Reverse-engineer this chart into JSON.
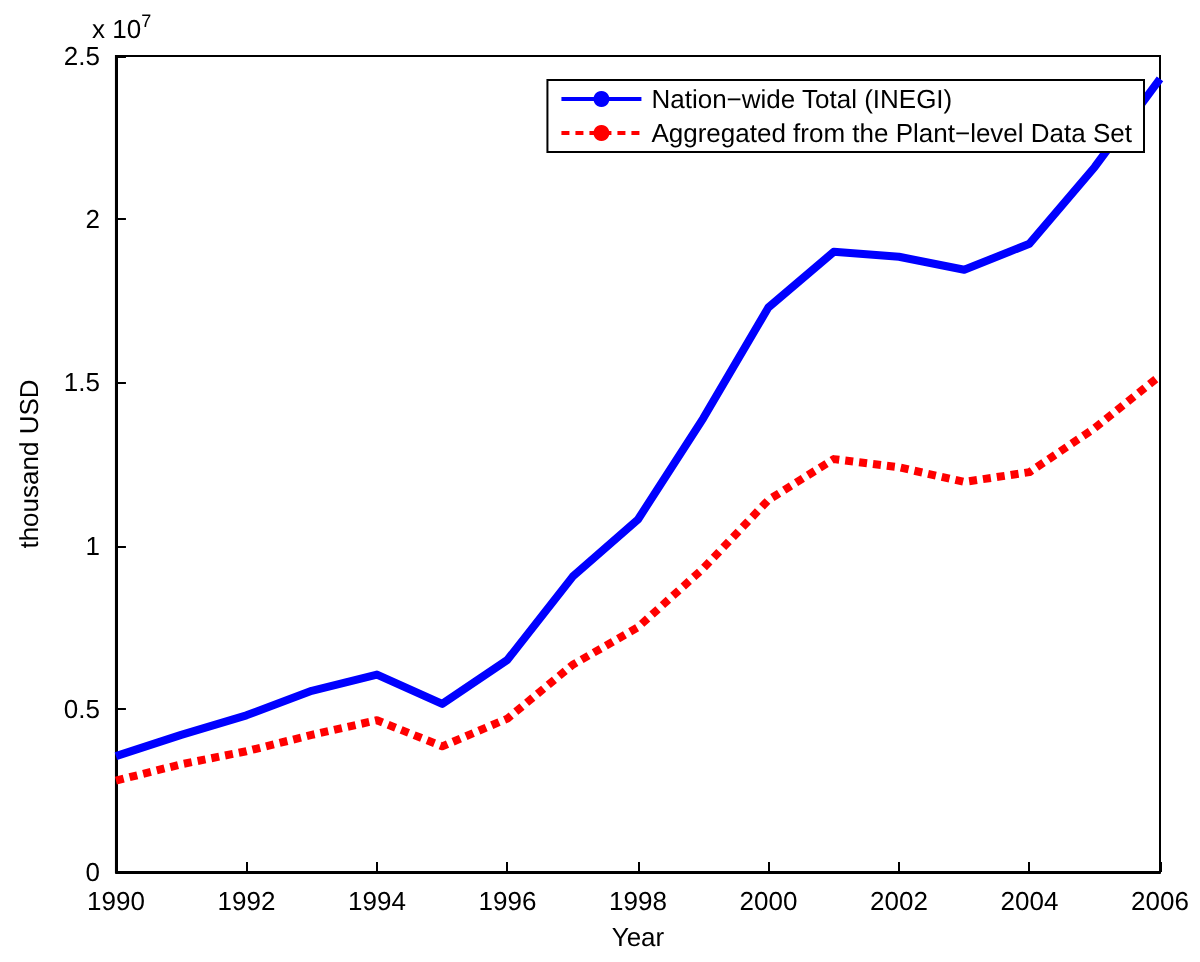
{
  "chart_data": {
    "type": "line",
    "xlabel": "Year",
    "ylabel": "thousand USD",
    "annotations": [
      "x 10$^{7}$"
    ],
    "x": [
      1990,
      1991,
      1992,
      1993,
      1994,
      1995,
      1996,
      1997,
      1998,
      1999,
      2000,
      2001,
      2002,
      2003,
      2004,
      2005,
      2006
    ],
    "series": [
      {
        "name": "Nation−wide Total (INEGI)",
        "color": "#0000ff",
        "line_style": "solid",
        "values": [
          0.355,
          0.42,
          0.48,
          0.555,
          0.605,
          0.515,
          0.65,
          0.905,
          1.08,
          1.39,
          1.73,
          1.9,
          1.885,
          1.845,
          1.925,
          2.16,
          2.43
        ]
      },
      {
        "name": "Aggregated from the Plant−level Data Set",
        "color": "#ff0000",
        "line_style": "dashed",
        "values": [
          0.28,
          0.33,
          0.37,
          0.42,
          0.465,
          0.385,
          0.47,
          0.635,
          0.75,
          0.93,
          1.14,
          1.265,
          1.24,
          1.195,
          1.225,
          1.36,
          1.52
        ]
      }
    ],
    "xlim": [
      1990,
      2006
    ],
    "xticks": [
      1990,
      1992,
      1994,
      1996,
      1998,
      2000,
      2002,
      2004,
      2006
    ],
    "ylim": [
      0,
      2.5
    ],
    "yticks": [
      0,
      0.5,
      1,
      1.5,
      2,
      2.5
    ],
    "grid": false,
    "legend": "top right",
    "marker": "none"
  }
}
